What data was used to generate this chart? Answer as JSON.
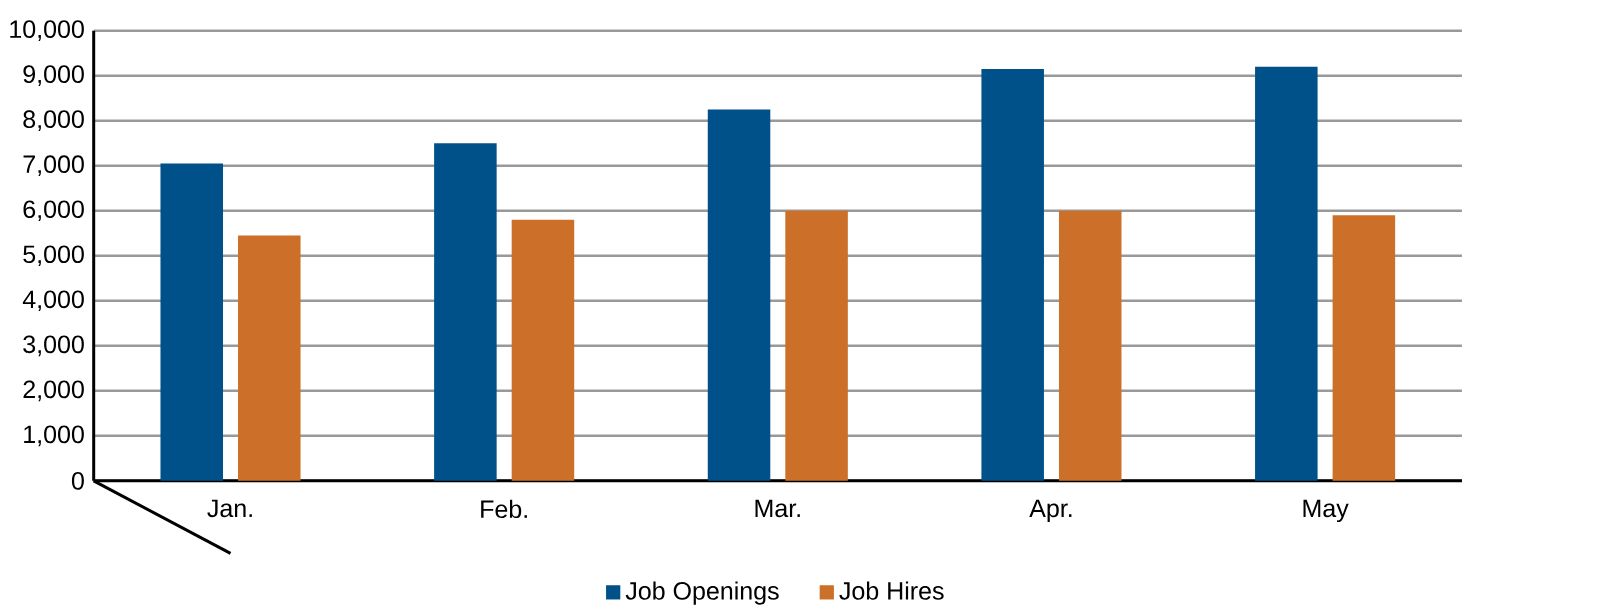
{
  "chart_data": {
    "type": "bar",
    "categories": [
      "Jan.",
      "Feb.",
      "Mar.",
      "Apr.",
      "May"
    ],
    "series": [
      {
        "name": "Job Openings",
        "color": "#00508a",
        "values": [
          7050,
          7500,
          8250,
          9150,
          9200
        ]
      },
      {
        "name": "Job Hires",
        "color": "#cc7029",
        "values": [
          5450,
          5800,
          6000,
          6000,
          5900
        ]
      }
    ],
    "ylim": [
      0,
      10000
    ],
    "yticks": [
      0,
      {
        "value": 1000,
        "label": "1,000"
      },
      {
        "value": 2000,
        "label": "2,000"
      },
      {
        "value": 3000,
        "label": "3,000"
      },
      {
        "value": 4000,
        "label": "4,000"
      },
      {
        "value": 5000,
        "label": "5,000"
      },
      {
        "value": 6000,
        "label": "6,000"
      },
      {
        "value": 7000,
        "label": "7,000"
      },
      {
        "value": 8000,
        "label": "8,000"
      },
      {
        "value": 9000,
        "label": "9,000"
      },
      {
        "value": 10000,
        "label": "10,000"
      }
    ],
    "grid": "y",
    "legend": "bottom"
  }
}
